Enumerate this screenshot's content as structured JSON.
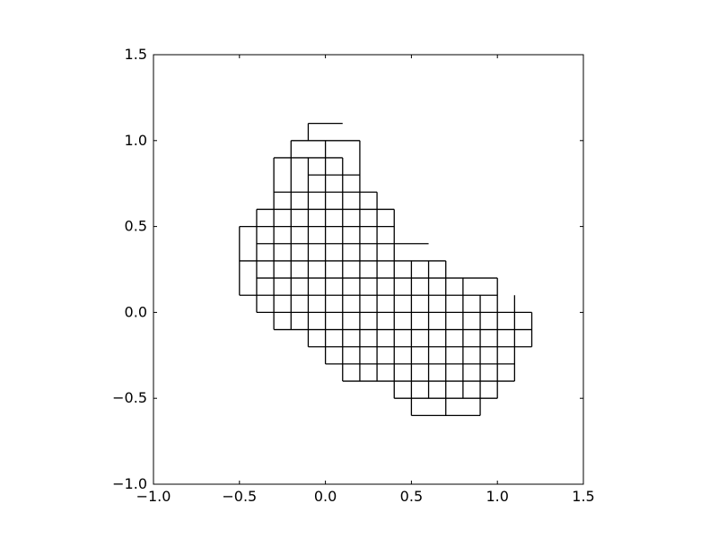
{
  "chart_data": {
    "type": "line",
    "title": "",
    "xlabel": "",
    "ylabel": "",
    "xlim": [
      -1.0,
      1.5
    ],
    "ylim": [
      -1.0,
      1.5
    ],
    "xticks": [
      "−1.0",
      "−0.5",
      "0.0",
      "0.5",
      "1.0",
      "1.5"
    ],
    "yticks": [
      "−1.0",
      "−0.5",
      "0.0",
      "0.5",
      "1.0",
      "1.5"
    ],
    "xtick_values": [
      -1.0,
      -0.5,
      0.0,
      0.5,
      1.0,
      1.5
    ],
    "ytick_values": [
      -1.0,
      -0.5,
      0.0,
      0.5,
      1.0,
      1.5
    ],
    "grid": false,
    "line_color": "#000000",
    "description_of_shape": "",
    "segments": [
      [
        [
          -0.1,
          1.1
        ],
        [
          0.1,
          1.1
        ]
      ],
      [
        [
          -0.1,
          1.0
        ],
        [
          -0.1,
          1.1
        ]
      ],
      [
        [
          -0.2,
          1.0
        ],
        [
          0.2,
          1.0
        ]
      ],
      [
        [
          -0.3,
          0.9
        ],
        [
          0.1,
          0.9
        ]
      ],
      [
        [
          -0.1,
          0.8
        ],
        [
          0.2,
          0.8
        ]
      ],
      [
        [
          -0.3,
          0.7
        ],
        [
          0.3,
          0.7
        ]
      ],
      [
        [
          -0.4,
          0.6
        ],
        [
          0.4,
          0.6
        ]
      ],
      [
        [
          -0.5,
          0.5
        ],
        [
          0.4,
          0.5
        ]
      ],
      [
        [
          -0.4,
          0.4
        ],
        [
          0.4,
          0.4
        ]
      ],
      [
        [
          -0.4,
          0.3
        ],
        [
          0.6,
          0.3
        ]
      ],
      [
        [
          -0.5,
          0.3
        ],
        [
          -0.4,
          0.3
        ]
      ],
      [
        [
          -0.4,
          0.2
        ],
        [
          0.7,
          0.2
        ]
      ],
      [
        [
          -0.4,
          0.1
        ],
        [
          1.0,
          0.1
        ]
      ],
      [
        [
          -0.5,
          0.1
        ],
        [
          -0.4,
          0.1
        ]
      ],
      [
        [
          -0.4,
          0.0
        ],
        [
          1.2,
          0.0
        ]
      ],
      [
        [
          -0.3,
          -0.1
        ],
        [
          1.2,
          -0.1
        ]
      ],
      [
        [
          -0.1,
          -0.2
        ],
        [
          1.2,
          -0.2
        ]
      ],
      [
        [
          0.0,
          -0.3
        ],
        [
          1.1,
          -0.3
        ]
      ],
      [
        [
          0.1,
          -0.4
        ],
        [
          1.1,
          -0.4
        ]
      ],
      [
        [
          0.4,
          -0.5
        ],
        [
          1.0,
          -0.5
        ]
      ],
      [
        [
          0.5,
          -0.6
        ],
        [
          0.9,
          -0.6
        ]
      ],
      [
        [
          -0.5,
          0.1
        ],
        [
          -0.5,
          0.5
        ]
      ],
      [
        [
          -0.4,
          0.0
        ],
        [
          -0.4,
          0.6
        ]
      ],
      [
        [
          -0.3,
          -0.1
        ],
        [
          -0.3,
          0.9
        ]
      ],
      [
        [
          -0.2,
          -0.1
        ],
        [
          -0.2,
          1.0
        ]
      ],
      [
        [
          -0.1,
          -0.2
        ],
        [
          -0.1,
          0.9
        ]
      ],
      [
        [
          0.0,
          -0.3
        ],
        [
          0.0,
          1.0
        ]
      ],
      [
        [
          0.1,
          -0.4
        ],
        [
          0.1,
          0.9
        ]
      ],
      [
        [
          0.2,
          -0.4
        ],
        [
          0.2,
          1.0
        ]
      ],
      [
        [
          0.3,
          -0.4
        ],
        [
          0.3,
          0.7
        ]
      ],
      [
        [
          0.4,
          -0.5
        ],
        [
          0.4,
          0.6
        ]
      ],
      [
        [
          0.5,
          -0.6
        ],
        [
          0.5,
          0.3
        ]
      ],
      [
        [
          0.6,
          -0.5
        ],
        [
          0.6,
          0.3
        ]
      ],
      [
        [
          0.7,
          -0.6
        ],
        [
          0.7,
          0.2
        ]
      ],
      [
        [
          0.8,
          -0.5
        ],
        [
          0.8,
          0.2
        ]
      ],
      [
        [
          0.9,
          -0.6
        ],
        [
          0.9,
          0.1
        ]
      ],
      [
        [
          1.0,
          -0.5
        ],
        [
          1.0,
          0.2
        ]
      ],
      [
        [
          1.1,
          -0.4
        ],
        [
          1.1,
          0.1
        ]
      ],
      [
        [
          1.2,
          -0.2
        ],
        [
          1.2,
          0.0
        ]
      ],
      [
        [
          0.7,
          0.2
        ],
        [
          1.0,
          0.2
        ]
      ],
      [
        [
          0.4,
          0.4
        ],
        [
          0.6,
          0.4
        ]
      ],
      [
        [
          0.6,
          0.3
        ],
        [
          0.7,
          0.3
        ]
      ],
      [
        [
          0.7,
          0.2
        ],
        [
          0.7,
          0.3
        ]
      ]
    ]
  }
}
